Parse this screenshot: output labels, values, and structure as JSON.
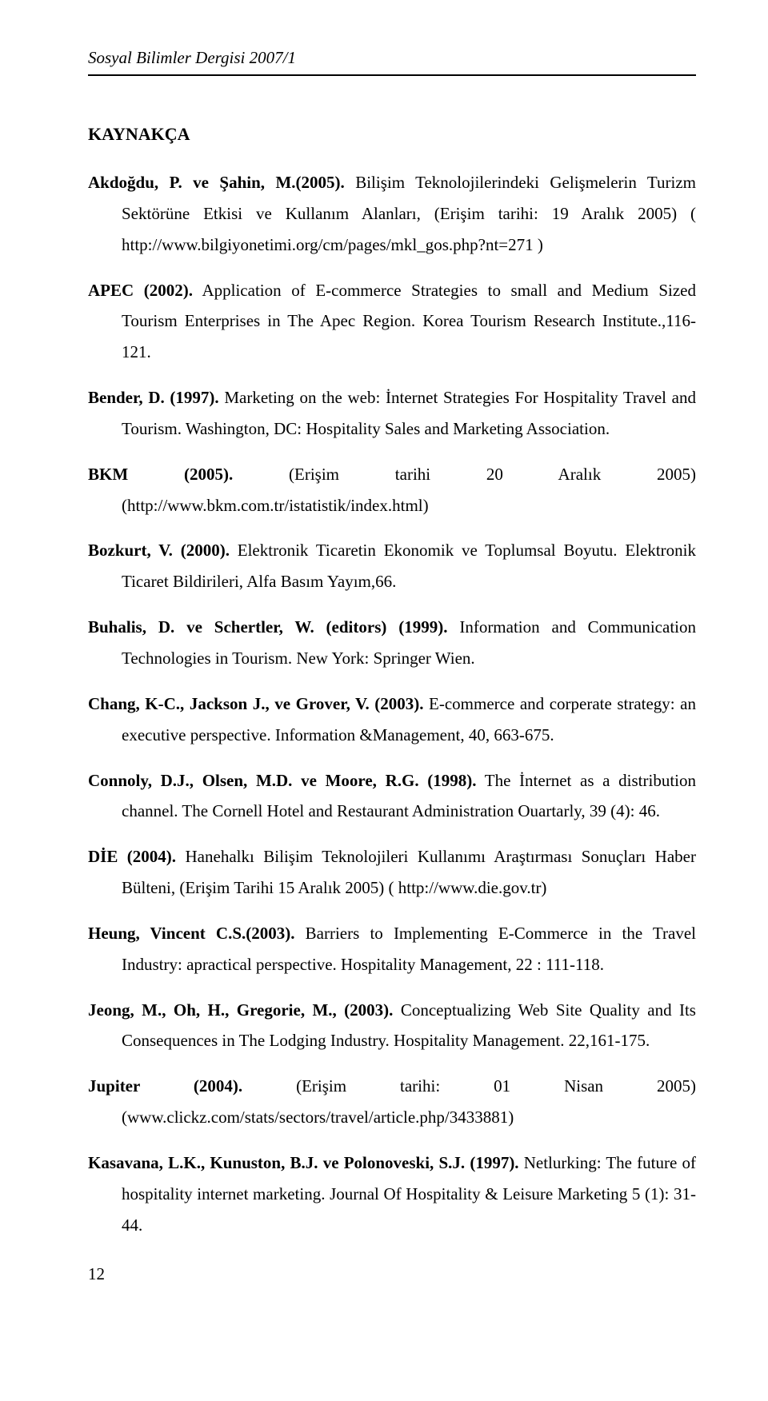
{
  "page": {
    "running_head": "Sosyal Bilimler Dergisi 2007/1",
    "section_title": "KAYNAKÇA",
    "page_number": "12"
  },
  "references": [
    {
      "author": "Akdoğdu, P. ve Şahin, M.(2005).",
      "text": " Bilişim Teknolojilerindeki Gelişmelerin Turizm Sektörüne Etkisi ve Kullanım Alanları, (Erişim tarihi: 19 Aralık 2005) ( http://www.bilgiyonetimi.org/cm/pages/mkl_gos.php?nt=271 )"
    },
    {
      "author": "APEC (2002).",
      "text": " Application of E-commerce Strategies to small and Medium Sized Tourism Enterprises in The Apec Region. Korea Tourism Research Institute.,116-121."
    },
    {
      "author": "Bender, D. (1997).",
      "text": " Marketing on the web: İnternet Strategies For Hospitality Travel and Tourism. Washington, DC: Hospitality Sales and Marketing Association."
    },
    {
      "author": "BKM (2005).",
      "text": " (Erişim tarihi 20 Aralık 2005) (http://www.bkm.com.tr/istatistik/index.html)"
    },
    {
      "author": "Bozkurt, V. (2000).",
      "text": " Elektronik Ticaretin Ekonomik ve Toplumsal Boyutu. Elektronik Ticaret Bildirileri, Alfa Basım Yayım,66."
    },
    {
      "author": "Buhalis, D. ve Schertler, W. (editors) (1999).",
      "text": " Information and Communication Technologies in Tourism. New York: Springer Wien."
    },
    {
      "author": "Chang, K-C., Jackson J., ve Grover, V. (2003).",
      "text": " E-commerce and corperate strategy: an executive perspective. Information &Management, 40, 663-675."
    },
    {
      "author": "Connoly, D.J., Olsen, M.D. ve Moore, R.G. (1998).",
      "text": " The İnternet as a distribution channel. The Cornell Hotel and Restaurant Administration Ouartarly, 39 (4): 46."
    },
    {
      "author": "DİE (2004).",
      "text": " Hanehalkı Bilişim Teknolojileri Kullanımı Araştırması Sonuçları Haber Bülteni, (Erişim Tarihi 15 Aralık 2005) ( http://www.die.gov.tr)"
    },
    {
      "author": "Heung, Vincent C.S.(2003).",
      "text": " Barriers to Implementing E-Commerce in the Travel Industry: apractical perspective. Hospitality Management, 22 : 111-118."
    },
    {
      "author": "Jeong, M., Oh, H., Gregorie, M., (2003).",
      "text": " Conceptualizing Web Site Quality and Its Consequences in The Lodging Industry. Hospitality Management. 22,161-175."
    },
    {
      "author": "Jupiter (2004).",
      "text": " (Erişim tarihi: 01 Nisan 2005) (www.clickz.com/stats/sectors/travel/article.php/3433881)"
    },
    {
      "author": "Kasavana, L.K., Kunuston, B.J. ve Polonoveski, S.J. (1997).",
      "text": " Netlurking: The future of hospitality internet marketing. Journal Of Hospitality & Leisure Marketing 5 (1): 31-44."
    }
  ]
}
